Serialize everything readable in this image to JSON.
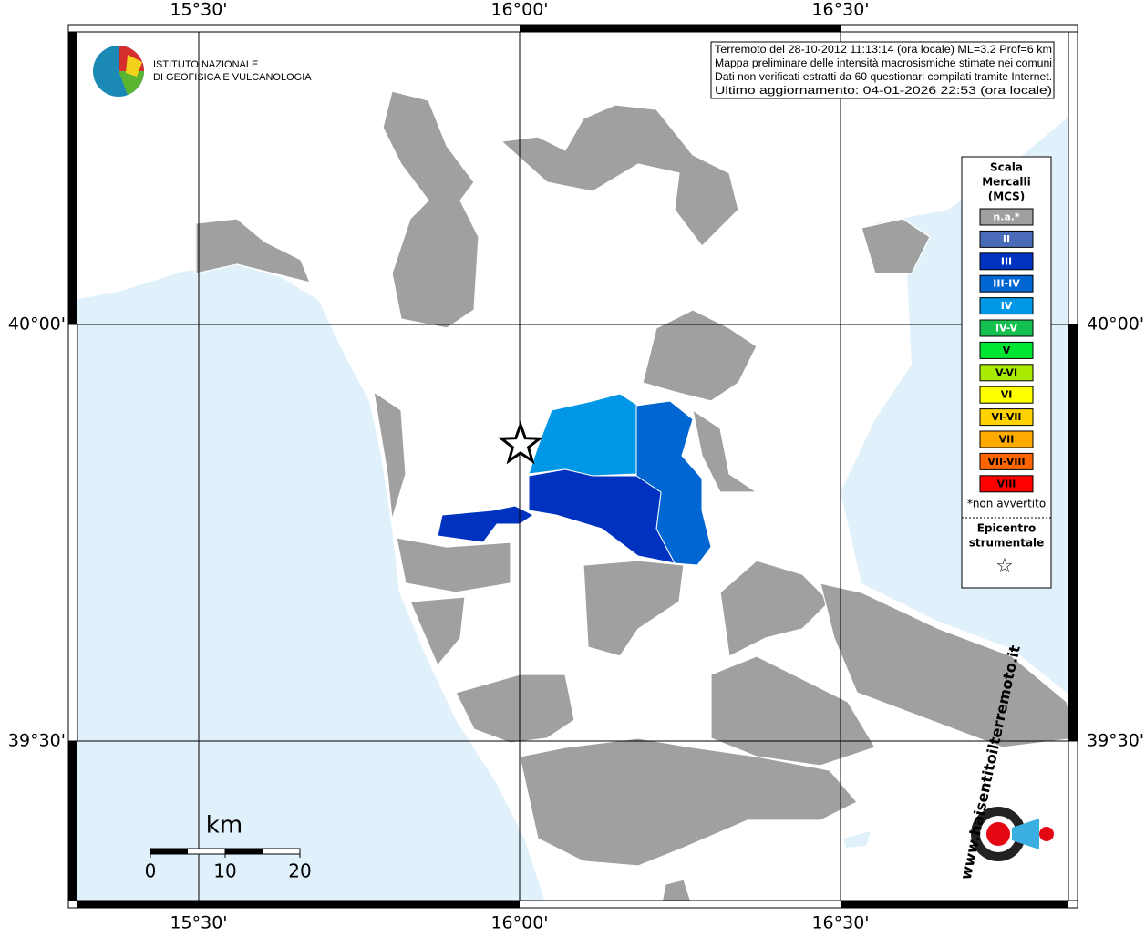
{
  "map": {
    "x_labels": [
      "15°30'",
      "16°00'",
      "16°30'"
    ],
    "y_labels": [
      "40°00'",
      "39°30'"
    ],
    "logo": [
      "ISTITUTO NAZIONALE",
      "DI GEOFISICA E VULCANOLOGIA"
    ],
    "info": [
      "Terremoto del 28-10-2012 11:13:14 (ora locale) ML=3.2 Prof=6 km",
      "Mappa preliminare delle intensità macrosismiche stimate nei comuni",
      "Dati non verificati estratti da 60 questionari compilati tramite Internet.",
      "Ultimo aggiornamento: 04-01-2026 22:53 (ora locale)"
    ],
    "legend": {
      "title": [
        "Scala",
        "Mercalli",
        "(MCS)"
      ],
      "items": [
        {
          "label": "n.a.*",
          "color": "#a0a0a0"
        },
        {
          "label": "II",
          "color": "#4a6cb8"
        },
        {
          "label": "III",
          "color": "#0032c0"
        },
        {
          "label": "III-IV",
          "color": "#0066d2"
        },
        {
          "label": "IV",
          "color": "#0098e6"
        },
        {
          "label": "IV-V",
          "color": "#14c050"
        },
        {
          "label": "V",
          "color": "#00e632"
        },
        {
          "label": "V-VI",
          "color": "#a8ea00"
        },
        {
          "label": "VI",
          "color": "#ffff00"
        },
        {
          "label": "VI-VII",
          "color": "#ffd200"
        },
        {
          "label": "VII",
          "color": "#ffaa00"
        },
        {
          "label": "VII-VIII",
          "color": "#ff6600"
        },
        {
          "label": "VIII",
          "color": "#ff0000"
        }
      ],
      "note": "*non avvertito",
      "epicenter": [
        "Epicentro",
        "strumentale"
      ]
    },
    "scale": {
      "unit": "km",
      "ticks": [
        0,
        10,
        20
      ]
    },
    "site_logo": "www.haisentitoilterremoto.it"
  }
}
